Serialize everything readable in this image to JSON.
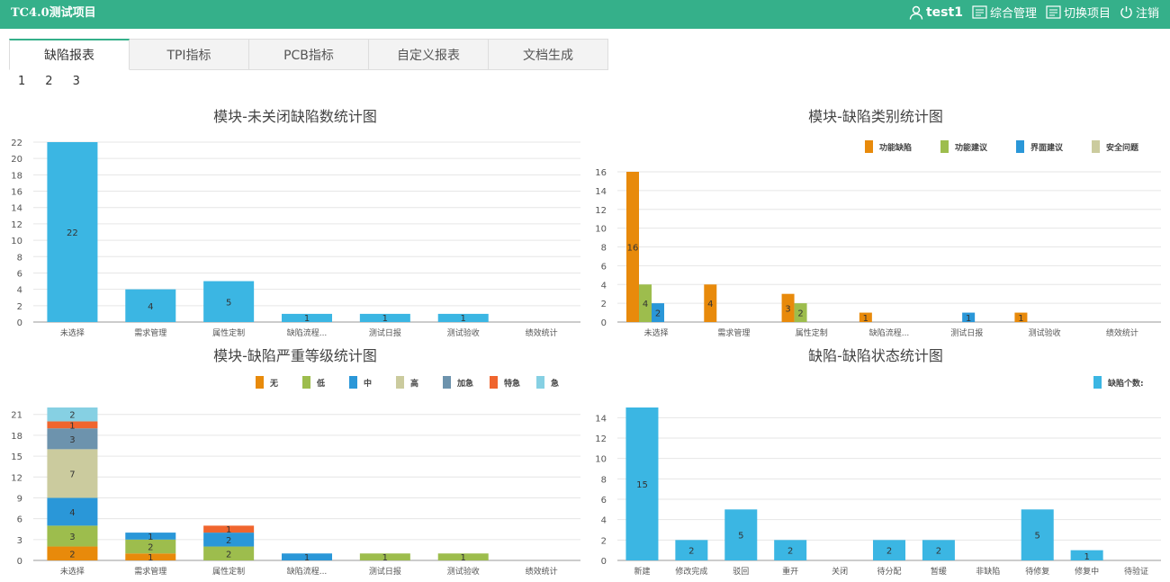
{
  "header": {
    "app_title": "TC4.0测试项目",
    "user": "test1",
    "menu": [
      "综合管理",
      "切换项目",
      "注销"
    ]
  },
  "colors": {
    "header_bg": "#35b08a",
    "bar_blue": "#3bb6e3"
  },
  "tabs": [
    {
      "label": "缺陷报表",
      "active": true
    },
    {
      "label": "TPI指标",
      "active": false
    },
    {
      "label": "PCB指标",
      "active": false
    },
    {
      "label": "自定义报表",
      "active": false
    },
    {
      "label": "文档生成",
      "active": false
    }
  ],
  "pager": [
    "1",
    "2",
    "3"
  ],
  "chart_data": [
    {
      "type": "bar",
      "title": "模块-未关闭缺陷数统计图",
      "categories": [
        "未选择",
        "需求管理",
        "属性定制",
        "缺陷流程...",
        "测试日报",
        "测试验收",
        "绩效统计"
      ],
      "series": [
        {
          "values": [
            22,
            4,
            5,
            1,
            1,
            1,
            0
          ],
          "color": "#3bb6e3"
        }
      ],
      "yticks": [
        0,
        2,
        4,
        6,
        8,
        10,
        12,
        14,
        16,
        18,
        20,
        22
      ],
      "ylim": [
        0,
        22
      ]
    },
    {
      "type": "bar",
      "title": "模块-缺陷类别统计图",
      "categories": [
        "未选择",
        "需求管理",
        "属性定制",
        "缺陷流程...",
        "测试日报",
        "测试验收",
        "绩效统计"
      ],
      "series": [
        {
          "name": "功能缺陷",
          "color": "#e88a0b",
          "values": [
            16,
            4,
            3,
            1,
            0,
            1,
            0
          ]
        },
        {
          "name": "功能建议",
          "color": "#9dbd4d",
          "values": [
            4,
            0,
            2,
            0,
            0,
            0,
            0
          ]
        },
        {
          "name": "界面建议",
          "color": "#2a97d8",
          "values": [
            2,
            0,
            0,
            0,
            1,
            0,
            0
          ]
        },
        {
          "name": "安全问题",
          "color": "#cbcb9e",
          "values": [
            0,
            0,
            0,
            0,
            0,
            0,
            0
          ]
        }
      ],
      "yticks": [
        0,
        2,
        4,
        6,
        8,
        10,
        12,
        14,
        16
      ],
      "ylim": [
        0,
        16
      ],
      "legend": "top-right"
    },
    {
      "type": "bar",
      "stacked": true,
      "title": "模块-缺陷严重等级统计图",
      "categories": [
        "未选择",
        "需求管理",
        "属性定制",
        "缺陷流程...",
        "测试日报",
        "测试验收",
        "绩效统计"
      ],
      "series": [
        {
          "name": "无",
          "color": "#e88a0b",
          "values": [
            2,
            1,
            0,
            0,
            0,
            0,
            0
          ]
        },
        {
          "name": "低",
          "color": "#9dbd4d",
          "values": [
            3,
            2,
            2,
            0,
            1,
            1,
            0
          ]
        },
        {
          "name": "中",
          "color": "#2a97d8",
          "values": [
            4,
            1,
            2,
            1,
            0,
            0,
            0
          ]
        },
        {
          "name": "高",
          "color": "#cbcb9e",
          "values": [
            7,
            0,
            0,
            0,
            0,
            0,
            0
          ]
        },
        {
          "name": "加急",
          "color": "#6d93ad",
          "values": [
            3,
            0,
            0,
            0,
            0,
            0,
            0
          ]
        },
        {
          "name": "特急",
          "color": "#f0652e",
          "values": [
            1,
            0,
            1,
            0,
            0,
            0,
            0
          ]
        },
        {
          "name": "急",
          "color": "#86d0e3",
          "values": [
            2,
            0,
            0,
            0,
            0,
            0,
            0
          ]
        }
      ],
      "yticks": [
        0,
        3,
        6,
        9,
        12,
        15,
        18,
        21
      ],
      "ylim": [
        0,
        22
      ],
      "legend": "top-right"
    },
    {
      "type": "bar",
      "title": "缺陷-缺陷状态统计图",
      "categories": [
        "新建",
        "修改完成",
        "驳回",
        "重开",
        "关闭",
        "待分配",
        "暂缓",
        "非缺陷",
        "待修复",
        "修复中",
        "待验证"
      ],
      "series": [
        {
          "name": "缺陷个数:",
          "color": "#3bb6e3",
          "values": [
            15,
            2,
            5,
            2,
            0,
            2,
            2,
            0,
            5,
            1,
            0
          ]
        }
      ],
      "yticks": [
        0,
        2,
        4,
        6,
        8,
        10,
        12,
        14
      ],
      "ylim": [
        0,
        15
      ],
      "legend": "top-right"
    }
  ]
}
